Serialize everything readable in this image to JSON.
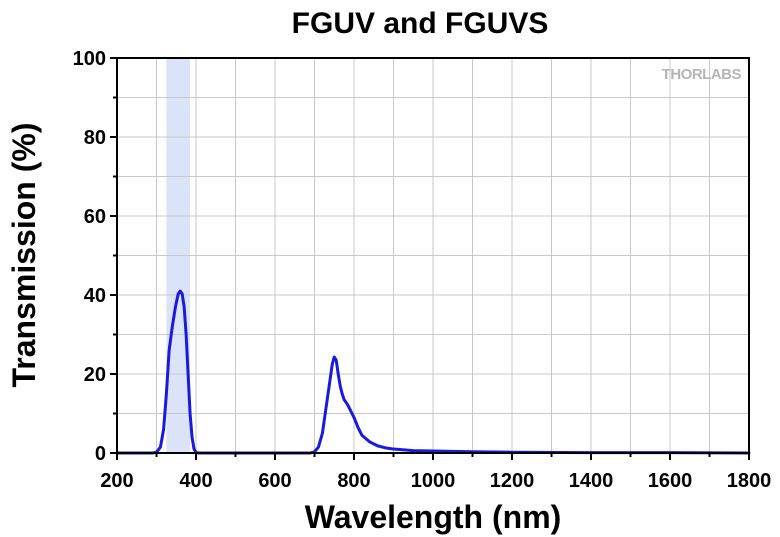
{
  "chart_data": {
    "type": "line",
    "title": "FGUV and FGUVS",
    "xlabel": "Wavelength (nm)",
    "ylabel": "Transmission (%)",
    "xlim": [
      200,
      1800
    ],
    "ylim": [
      0,
      100
    ],
    "xticks": [
      200,
      400,
      600,
      800,
      1000,
      1200,
      1400,
      1600,
      1800
    ],
    "yticks": [
      0,
      20,
      40,
      60,
      80,
      100
    ],
    "x_minor_step": 100,
    "y_minor_step": 10,
    "grid": true,
    "legend": "none",
    "watermark": "THORLABS",
    "highlight_band": {
      "x_range": [
        325,
        385
      ],
      "color": "#dbe3f8"
    },
    "line_color": "#1a1adc",
    "series": [
      {
        "x": [
          200,
          290,
          300,
          310,
          318,
          325,
          332,
          340,
          348,
          355,
          360,
          365,
          370,
          375,
          380,
          385,
          390,
          395,
          400,
          405,
          410,
          420,
          600,
          690,
          700,
          710,
          720,
          730,
          740,
          745,
          750,
          755,
          760,
          765,
          770,
          775,
          780,
          785,
          790,
          800,
          810,
          820,
          840,
          860,
          880,
          900,
          950,
          1000,
          1100,
          1200,
          1400,
          1600,
          1800
        ],
        "y": [
          0,
          0,
          0.2,
          1.5,
          6,
          15,
          26,
          32,
          37,
          40.3,
          41,
          40.3,
          37,
          30,
          20,
          10,
          4,
          1,
          0.2,
          0,
          0,
          0,
          0,
          0,
          0.3,
          1.5,
          5,
          12,
          19,
          22.5,
          24.3,
          23.5,
          20,
          17,
          15,
          13.5,
          12.8,
          12,
          11,
          9,
          6.5,
          4.5,
          2.8,
          1.8,
          1.3,
          1.0,
          0.6,
          0.5,
          0.3,
          0.2,
          0.1,
          0.1,
          0
        ]
      }
    ]
  }
}
